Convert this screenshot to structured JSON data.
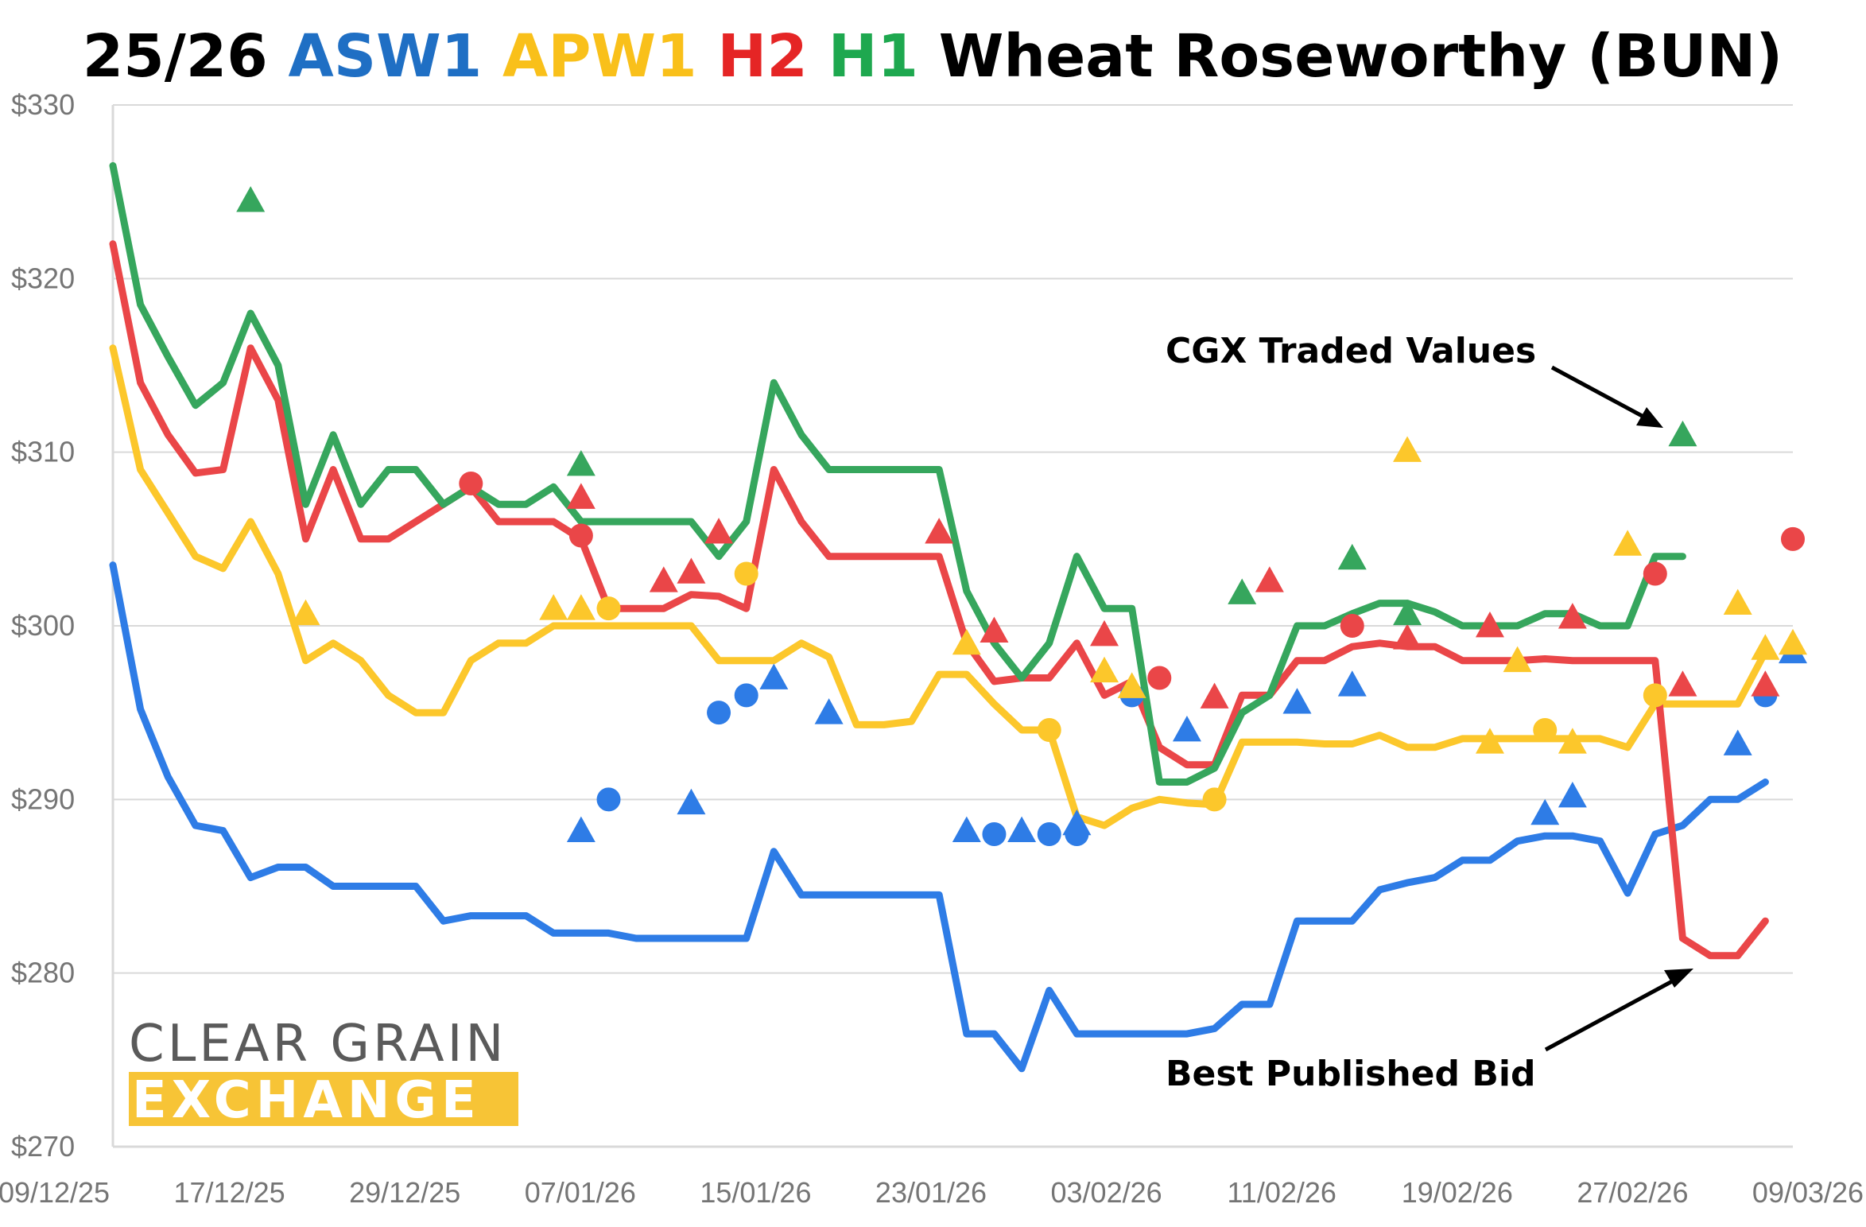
{
  "colors": {
    "asw1": "#2e7ce6",
    "apw1": "#fcc72b",
    "h2": "#ea4648",
    "h1": "#36a65d",
    "grid": "#d9d9d9",
    "tick": "#757575",
    "logo_gray": "#5a5a5a",
    "logo_yellow": "#f7c436"
  },
  "title": {
    "prefix": "25/26",
    "asw1": "ASW1",
    "apw1": "APW1",
    "h2": "H2",
    "h1": "H1",
    "suffix": "Wheat Roseworthy (BUN)"
  },
  "annotations": {
    "traded": "CGX Traded Values",
    "bid": "Best Published Bid"
  },
  "logo": {
    "line1": "CLEAR GRAIN",
    "line2": "EXCHANGE"
  },
  "chart_data": {
    "type": "line",
    "title": "25/26 ASW1 APW1 H2 H1 Wheat Roseworthy (BUN)",
    "x_axis": {
      "type": "date",
      "start": "09/12/25",
      "end": "09/03/26",
      "ticks": [
        "09/12/25",
        "17/12/25",
        "29/12/25",
        "07/01/26",
        "15/01/26",
        "23/01/26",
        "03/02/26",
        "11/02/26",
        "19/02/26",
        "27/02/26",
        "09/03/26"
      ]
    },
    "y_axis": {
      "min": 270,
      "max": 330,
      "ticks": [
        "$270",
        "$280",
        "$290",
        "$300",
        "$310",
        "$320",
        "$330"
      ],
      "grid": true
    },
    "series": [
      {
        "name": "ASW1",
        "color": "#2e7ce6",
        "line": [
          [
            0,
            303.5
          ],
          [
            1,
            295.2
          ],
          [
            2,
            291.3
          ],
          [
            3,
            288.5
          ],
          [
            4,
            288.2
          ],
          [
            5,
            285.5
          ],
          [
            6,
            286.1
          ],
          [
            7,
            286.1
          ],
          [
            8,
            285
          ],
          [
            9,
            285
          ],
          [
            10,
            285
          ],
          [
            11,
            285
          ],
          [
            12,
            283
          ],
          [
            13,
            283.3
          ],
          [
            14,
            283.3
          ],
          [
            15,
            283.3
          ],
          [
            16,
            282.3
          ],
          [
            17,
            282.3
          ],
          [
            18,
            282.3
          ],
          [
            19,
            282
          ],
          [
            20,
            282
          ],
          [
            21,
            282
          ],
          [
            22,
            282
          ],
          [
            23,
            282
          ],
          [
            24,
            287
          ],
          [
            25,
            284.5
          ],
          [
            26,
            284.5
          ],
          [
            27,
            284.5
          ],
          [
            28,
            284.5
          ],
          [
            29,
            284.5
          ],
          [
            30,
            284.5
          ],
          [
            31,
            276.5
          ],
          [
            32,
            276.5
          ],
          [
            33,
            274.5
          ],
          [
            34,
            279
          ],
          [
            35,
            276.5
          ],
          [
            36,
            276.5
          ],
          [
            37,
            276.5
          ],
          [
            38,
            276.5
          ],
          [
            39,
            276.5
          ],
          [
            40,
            276.8
          ],
          [
            41,
            278.2
          ],
          [
            42,
            278.2
          ],
          [
            43,
            283
          ],
          [
            44,
            283
          ],
          [
            45,
            283
          ],
          [
            46,
            284.8
          ],
          [
            47,
            285.2
          ],
          [
            48,
            285.5
          ],
          [
            49,
            286.5
          ],
          [
            50,
            286.5
          ],
          [
            51,
            287.6
          ],
          [
            52,
            287.9
          ],
          [
            53,
            287.9
          ],
          [
            54,
            287.6
          ],
          [
            55,
            284.6
          ],
          [
            56,
            288
          ],
          [
            57,
            288.5
          ],
          [
            58,
            290
          ],
          [
            59,
            290
          ],
          [
            60,
            291
          ]
        ],
        "circles": [
          [
            22,
            295
          ],
          [
            23,
            296
          ],
          [
            18,
            290
          ],
          [
            32,
            288
          ],
          [
            34,
            288
          ],
          [
            35,
            288
          ],
          [
            37,
            296
          ],
          [
            60,
            296
          ]
        ],
        "triangles": [
          [
            17,
            288.2
          ],
          [
            21,
            289.8
          ],
          [
            24,
            297
          ],
          [
            26,
            295
          ],
          [
            31,
            288.2
          ],
          [
            33,
            288.2
          ],
          [
            35,
            288.6
          ],
          [
            39,
            294
          ],
          [
            43,
            295.6
          ],
          [
            45,
            296.6
          ],
          [
            52,
            289.2
          ],
          [
            53,
            290.2
          ],
          [
            59,
            293.2
          ],
          [
            61,
            298.5
          ]
        ]
      },
      {
        "name": "APW1",
        "color": "#fcc72b",
        "line": [
          [
            0,
            316
          ],
          [
            1,
            309
          ],
          [
            2,
            306.5
          ],
          [
            3,
            304
          ],
          [
            4,
            303.3
          ],
          [
            5,
            306
          ],
          [
            6,
            303
          ],
          [
            7,
            298
          ],
          [
            8,
            299
          ],
          [
            9,
            298
          ],
          [
            10,
            296
          ],
          [
            11,
            295
          ],
          [
            12,
            295
          ],
          [
            13,
            298
          ],
          [
            14,
            299
          ],
          [
            15,
            299
          ],
          [
            16,
            300
          ],
          [
            17,
            300
          ],
          [
            18,
            300
          ],
          [
            19,
            300
          ],
          [
            20,
            300
          ],
          [
            21,
            300
          ],
          [
            22,
            298
          ],
          [
            23,
            298
          ],
          [
            24,
            298
          ],
          [
            25,
            299
          ],
          [
            26,
            298.2
          ],
          [
            27,
            294.3
          ],
          [
            28,
            294.3
          ],
          [
            29,
            294.5
          ],
          [
            30,
            297.2
          ],
          [
            31,
            297.2
          ],
          [
            32,
            295.5
          ],
          [
            33,
            294
          ],
          [
            34,
            294
          ],
          [
            35,
            289
          ],
          [
            36,
            288.5
          ],
          [
            37,
            289.5
          ],
          [
            38,
            290
          ],
          [
            39,
            289.8
          ],
          [
            40,
            289.7
          ],
          [
            41,
            293.3
          ],
          [
            42,
            293.3
          ],
          [
            43,
            293.3
          ],
          [
            44,
            293.2
          ],
          [
            45,
            293.2
          ],
          [
            46,
            293.7
          ],
          [
            47,
            293
          ],
          [
            48,
            293
          ],
          [
            49,
            293.5
          ],
          [
            50,
            293.5
          ],
          [
            51,
            293.5
          ],
          [
            52,
            293.5
          ],
          [
            53,
            293.5
          ],
          [
            54,
            293.5
          ],
          [
            55,
            293
          ],
          [
            56,
            295.5
          ],
          [
            57,
            295.5
          ],
          [
            58,
            295.5
          ],
          [
            59,
            295.5
          ],
          [
            60,
            298.5
          ]
        ],
        "circles": [
          [
            18,
            301
          ],
          [
            23,
            303
          ],
          [
            34,
            294
          ],
          [
            40,
            290
          ],
          [
            52,
            294
          ],
          [
            56,
            296
          ]
        ],
        "triangles": [
          [
            7,
            300.7
          ],
          [
            16,
            301
          ],
          [
            17,
            301
          ],
          [
            31,
            299
          ],
          [
            36,
            297.4
          ],
          [
            37,
            296.5
          ],
          [
            50,
            293.3
          ],
          [
            51,
            298
          ],
          [
            53,
            293.3
          ],
          [
            47,
            310.1
          ],
          [
            55,
            304.7
          ],
          [
            59,
            301.3
          ],
          [
            60,
            298.7
          ],
          [
            61,
            299
          ]
        ]
      },
      {
        "name": "H2",
        "color": "#ea4648",
        "line": [
          [
            0,
            322
          ],
          [
            1,
            314
          ],
          [
            2,
            311
          ],
          [
            3,
            308.8
          ],
          [
            4,
            309
          ],
          [
            5,
            316
          ],
          [
            6,
            313
          ],
          [
            7,
            305
          ],
          [
            8,
            309
          ],
          [
            9,
            305
          ],
          [
            10,
            305
          ],
          [
            11,
            306
          ],
          [
            12,
            307
          ],
          [
            13,
            308
          ],
          [
            14,
            306
          ],
          [
            15,
            306
          ],
          [
            16,
            306
          ],
          [
            17,
            305
          ],
          [
            18,
            301
          ],
          [
            19,
            301
          ],
          [
            20,
            301
          ],
          [
            21,
            301.8
          ],
          [
            22,
            301.7
          ],
          [
            23,
            301
          ],
          [
            24,
            309
          ],
          [
            25,
            306
          ],
          [
            26,
            304
          ],
          [
            27,
            304
          ],
          [
            28,
            304
          ],
          [
            29,
            304
          ],
          [
            30,
            304
          ],
          [
            31,
            299
          ],
          [
            32,
            296.8
          ],
          [
            33,
            297
          ],
          [
            34,
            297
          ],
          [
            35,
            299
          ],
          [
            36,
            296
          ],
          [
            37,
            296.8
          ],
          [
            38,
            293
          ],
          [
            39,
            292
          ],
          [
            40,
            292
          ],
          [
            41,
            296
          ],
          [
            42,
            296
          ],
          [
            43,
            298
          ],
          [
            44,
            298
          ],
          [
            45,
            298.8
          ],
          [
            46,
            299
          ],
          [
            47,
            298.8
          ],
          [
            48,
            298.8
          ],
          [
            49,
            298
          ],
          [
            50,
            298
          ],
          [
            51,
            298
          ],
          [
            52,
            298.1
          ],
          [
            53,
            298
          ],
          [
            54,
            298
          ],
          [
            55,
            298
          ],
          [
            56,
            298
          ],
          [
            57,
            282
          ],
          [
            58,
            281
          ],
          [
            59,
            281
          ],
          [
            60,
            283
          ]
        ],
        "circles": [
          [
            13,
            308.2
          ],
          [
            17,
            305.2
          ],
          [
            38,
            297
          ],
          [
            45,
            300
          ],
          [
            56,
            303
          ],
          [
            61,
            305
          ]
        ],
        "triangles": [
          [
            17,
            307.4
          ],
          [
            20,
            302.6
          ],
          [
            21,
            303.1
          ],
          [
            22,
            305.4
          ],
          [
            30,
            305.4
          ],
          [
            32,
            299.7
          ],
          [
            36,
            299.5
          ],
          [
            40,
            295.9
          ],
          [
            42,
            302.6
          ],
          [
            47,
            299.3
          ],
          [
            50,
            300
          ],
          [
            53,
            300.5
          ],
          [
            57,
            296.6
          ],
          [
            60,
            296.6
          ]
        ]
      },
      {
        "name": "H1",
        "color": "#36a65d",
        "line": [
          [
            0,
            326.5
          ],
          [
            1,
            318.5
          ],
          [
            2,
            315.5
          ],
          [
            3,
            312.7
          ],
          [
            4,
            314
          ],
          [
            5,
            318
          ],
          [
            6,
            315
          ],
          [
            7,
            307
          ],
          [
            8,
            311
          ],
          [
            9,
            307
          ],
          [
            10,
            309
          ],
          [
            11,
            309
          ],
          [
            12,
            307
          ],
          [
            13,
            308
          ],
          [
            14,
            307
          ],
          [
            15,
            307
          ],
          [
            16,
            308
          ],
          [
            17,
            306
          ],
          [
            18,
            306
          ],
          [
            19,
            306
          ],
          [
            20,
            306
          ],
          [
            21,
            306
          ],
          [
            22,
            304
          ],
          [
            23,
            306
          ],
          [
            24,
            314
          ],
          [
            25,
            311
          ],
          [
            26,
            309
          ],
          [
            27,
            309
          ],
          [
            28,
            309
          ],
          [
            29,
            309
          ],
          [
            30,
            309
          ],
          [
            31,
            302
          ],
          [
            32,
            299
          ],
          [
            33,
            297
          ],
          [
            34,
            299
          ],
          [
            35,
            304
          ],
          [
            36,
            301
          ],
          [
            37,
            301
          ],
          [
            38,
            291
          ],
          [
            39,
            291
          ],
          [
            40,
            291.8
          ],
          [
            41,
            295
          ],
          [
            42,
            296
          ],
          [
            43,
            300
          ],
          [
            44,
            300
          ],
          [
            45,
            300.7
          ],
          [
            46,
            301.3
          ],
          [
            47,
            301.3
          ],
          [
            48,
            300.8
          ],
          [
            49,
            300
          ],
          [
            50,
            300
          ],
          [
            51,
            300
          ],
          [
            52,
            300.7
          ],
          [
            53,
            300.7
          ],
          [
            54,
            300
          ],
          [
            55,
            300
          ],
          [
            56,
            304
          ],
          [
            57,
            304
          ]
        ],
        "circles": [],
        "triangles": [
          [
            5,
            324.5
          ],
          [
            17,
            309.3
          ],
          [
            41,
            301.9
          ],
          [
            45,
            303.9
          ],
          [
            47,
            300.7
          ],
          [
            57,
            311
          ]
        ]
      }
    ]
  }
}
